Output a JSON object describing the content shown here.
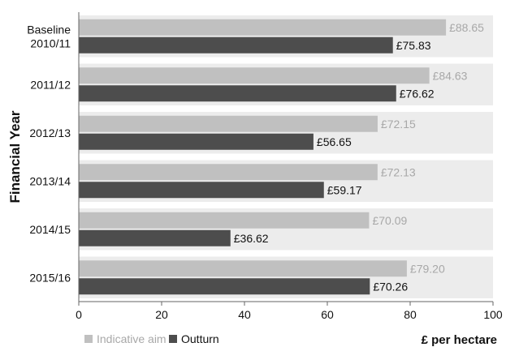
{
  "chart_data": {
    "type": "bar",
    "orientation": "horizontal",
    "categories": [
      [
        "Baseline",
        "2010/11"
      ],
      [
        "2011/12"
      ],
      [
        "2012/13"
      ],
      [
        "2013/14"
      ],
      [
        "2014/15"
      ],
      [
        "2015/16"
      ]
    ],
    "series": [
      {
        "name": "Indicative aim",
        "color": "#c0c0c0",
        "label_color": "#a8a8a8",
        "values": [
          88.65,
          84.63,
          72.15,
          72.13,
          70.09,
          79.2
        ],
        "labels": [
          "£88.65",
          "£84.63",
          "£72.15",
          "£72.13",
          "£70.09",
          "£79.20"
        ]
      },
      {
        "name": "Outturn",
        "color": "#4d4d4d",
        "label_color": "#111111",
        "values": [
          75.83,
          76.62,
          56.65,
          59.17,
          36.62,
          70.26
        ],
        "labels": [
          "£75.83",
          "£76.62",
          "£56.65",
          "£59.17",
          "£36.62",
          "£70.26"
        ]
      }
    ],
    "xlim": [
      0,
      100
    ],
    "xticks": [
      "0",
      "20",
      "40",
      "60",
      "80",
      "100"
    ],
    "xlabel": "£ per hectare",
    "ylabel": "Financial Year",
    "band_color": "#ececec",
    "grid": false,
    "legend_position": "bottom-left"
  }
}
